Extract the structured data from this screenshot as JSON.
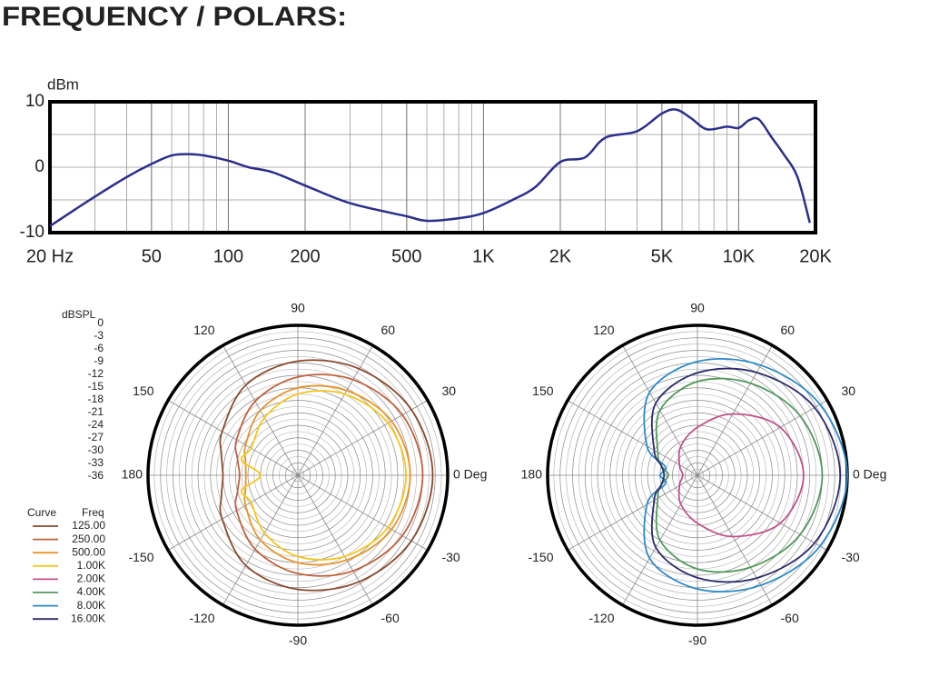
{
  "title": "FREQUENCY / POLARS:",
  "chart_data": [
    {
      "type": "line",
      "ylabel": "dBm",
      "xscale": "log",
      "xlim": [
        20,
        20000
      ],
      "ylim": [
        -10,
        10
      ],
      "yticks": [
        -10,
        0,
        10
      ],
      "xticks": [
        {
          "value": 20,
          "label": "20  Hz"
        },
        50,
        100,
        200,
        500,
        {
          "value": 1000,
          "label": "1K"
        },
        {
          "value": 2000,
          "label": "2K"
        },
        {
          "value": 5000,
          "label": "5K"
        },
        {
          "value": 10000,
          "label": "10K"
        },
        {
          "value": 20000,
          "label": "20K"
        }
      ],
      "grid": true,
      "series": [
        {
          "color": "#2b2f8c",
          "x": [
            20,
            25,
            30,
            40,
            50,
            60,
            70,
            80,
            100,
            120,
            150,
            200,
            300,
            500,
            600,
            800,
            1000,
            1300,
            1600,
            2000,
            2500,
            3000,
            4000,
            5000,
            5700,
            6500,
            7500,
            9000,
            10000,
            11000,
            12000,
            13500,
            15000,
            17000,
            19000
          ],
          "values": [
            -9,
            -6.5,
            -4.5,
            -1.5,
            0.5,
            1.8,
            2,
            1.8,
            1,
            0,
            -0.8,
            -2.8,
            -5.5,
            -7.5,
            -8.2,
            -7.8,
            -7,
            -5,
            -3,
            0.8,
            1.5,
            4.5,
            5.5,
            8.2,
            8.8,
            7.5,
            5.8,
            6.2,
            6,
            7.2,
            7.3,
            4.5,
            2,
            -1.5,
            -8.5
          ]
        }
      ]
    },
    {
      "type": "polar",
      "rlabel": "dBSPL",
      "rlim": [
        -36,
        0
      ],
      "rticks": [
        0,
        -3,
        -6,
        -9,
        -12,
        -15,
        -18,
        -21,
        -24,
        -27,
        -30,
        -33,
        -36
      ],
      "thetaticks": [
        {
          "value": 0,
          "label": "0 Deg"
        },
        30,
        60,
        90,
        120,
        150,
        180,
        -150,
        -120,
        -90,
        -60,
        -30
      ],
      "legend_headers": [
        "Curve",
        "Freq"
      ],
      "theta": [
        0,
        30,
        60,
        90,
        120,
        150,
        165,
        180,
        195,
        210,
        240,
        270,
        300,
        330
      ],
      "series": [
        {
          "name": "125.00",
          "color": "#8b4a2b",
          "values": [
            -3.6,
            -4.5,
            -6.5,
            -8.6,
            -11,
            -15,
            -17,
            -18,
            -17,
            -15,
            -11,
            -8.6,
            -6.5,
            -4.5
          ]
        },
        {
          "name": "250.00",
          "color": "#c0603a",
          "values": [
            -6,
            -7,
            -9.5,
            -12.4,
            -15.5,
            -19,
            -21,
            -22,
            -21,
            -19,
            -15.5,
            -12.4,
            -9.5,
            -7
          ]
        },
        {
          "name": "500.00",
          "color": "#e8922a",
          "values": [
            -9,
            -10,
            -12.5,
            -15,
            -18,
            -21.5,
            -23,
            -23.5,
            -23,
            -21.5,
            -18,
            -15,
            -12.5,
            -10
          ]
        },
        {
          "name": "1.00K",
          "color": "#f5c518",
          "values": [
            -10,
            -11,
            -13.5,
            -16.5,
            -20,
            -23,
            -22,
            -27,
            -22,
            -23,
            -20,
            -16.5,
            -13.5,
            -11
          ]
        }
      ]
    },
    {
      "type": "polar",
      "rlim": [
        -36,
        0
      ],
      "rticks": [
        0,
        -3,
        -6,
        -9,
        -12,
        -15,
        -18,
        -21,
        -24,
        -27,
        -30,
        -33,
        -36
      ],
      "thetaticks": [
        {
          "value": 0,
          "label": "0 Deg"
        },
        30,
        60,
        90,
        120,
        150,
        180,
        -150,
        -120,
        -90,
        -60,
        -30
      ],
      "theta": [
        0,
        30,
        60,
        90,
        120,
        150,
        165,
        180,
        195,
        210,
        240,
        270,
        300,
        330
      ],
      "series": [
        {
          "name": "2.00K",
          "color": "#c0508a",
          "values": [
            -10.5,
            -13,
            -19,
            -24.5,
            -28,
            -31,
            -32,
            -32.5,
            -32,
            -31,
            -28,
            -24.5,
            -19,
            -13
          ]
        },
        {
          "name": "4.00K",
          "color": "#4f9a5a",
          "values": [
            -6,
            -7.5,
            -10.5,
            -13.5,
            -18,
            -25,
            -27,
            -29,
            -27,
            -25,
            -18,
            -13.5,
            -10.5,
            -7.5
          ]
        },
        {
          "name": "8.00K",
          "color": "#2a8ac8",
          "values": [
            0,
            -2,
            -5.5,
            -8.7,
            -13,
            -22,
            -28,
            -27,
            -28,
            -22,
            -13,
            -8.7,
            -5.5,
            -2
          ]
        },
        {
          "name": "16.00K",
          "color": "#2c2a6b",
          "values": [
            -1.7,
            -3.5,
            -7.5,
            -11.4,
            -16,
            -24,
            -27,
            -28,
            -27,
            -24,
            -16,
            -11.4,
            -7.5,
            -3.5
          ]
        }
      ]
    }
  ]
}
